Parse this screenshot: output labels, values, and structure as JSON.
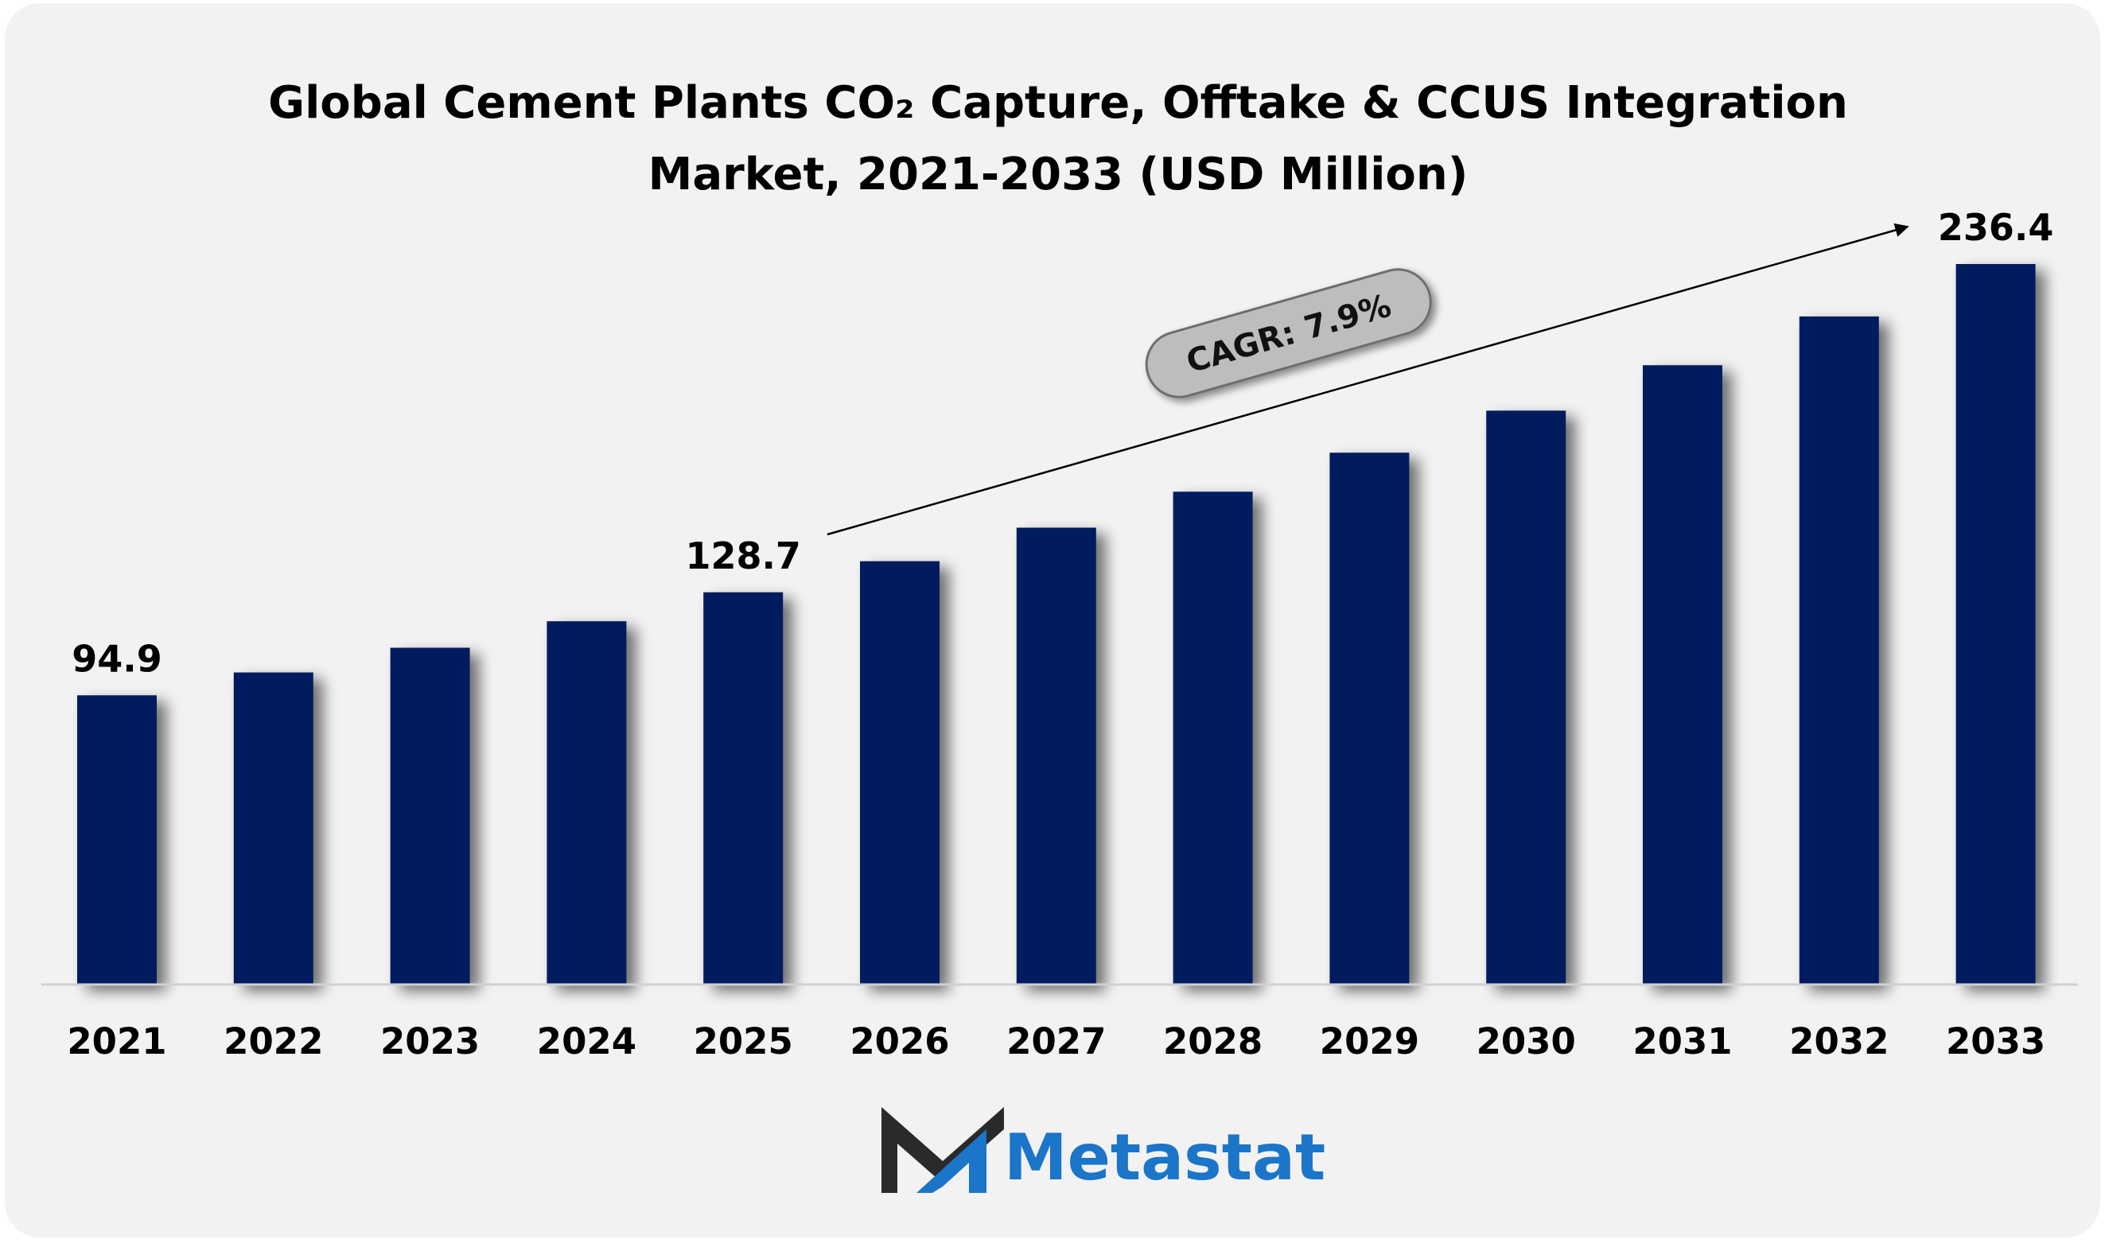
{
  "chart_data": {
    "type": "bar",
    "title": "Global Cement Plants CO₂ Capture, Offtake & CCUS Integration Market, 2021-2033 (USD Million)",
    "title_lines": [
      "Global Cement Plants CO₂ Capture, Offtake & CCUS Integration",
      "Market, 2021-2033 (USD Million)"
    ],
    "categories": [
      "2021",
      "2022",
      "2023",
      "2024",
      "2025",
      "2026",
      "2027",
      "2028",
      "2029",
      "2030",
      "2031",
      "2032",
      "2033"
    ],
    "values": [
      94.9,
      102.4,
      110.5,
      119.2,
      128.7,
      138.9,
      149.9,
      161.7,
      174.5,
      188.3,
      203.2,
      219.2,
      236.4
    ],
    "data_labels": {
      "2021": "94.9",
      "2025": "128.7",
      "2033": "236.4"
    },
    "annotation": "CAGR: 7.9%",
    "ylim": [
      0,
      250
    ],
    "bar_color": "#021f5e",
    "grid": false,
    "xlabel": "",
    "ylabel": ""
  },
  "brand": {
    "name": "Metastat",
    "color": "#1b75c9",
    "mark_dark": "#2a2a2a",
    "icon": "metastat-m-logo-icon"
  }
}
